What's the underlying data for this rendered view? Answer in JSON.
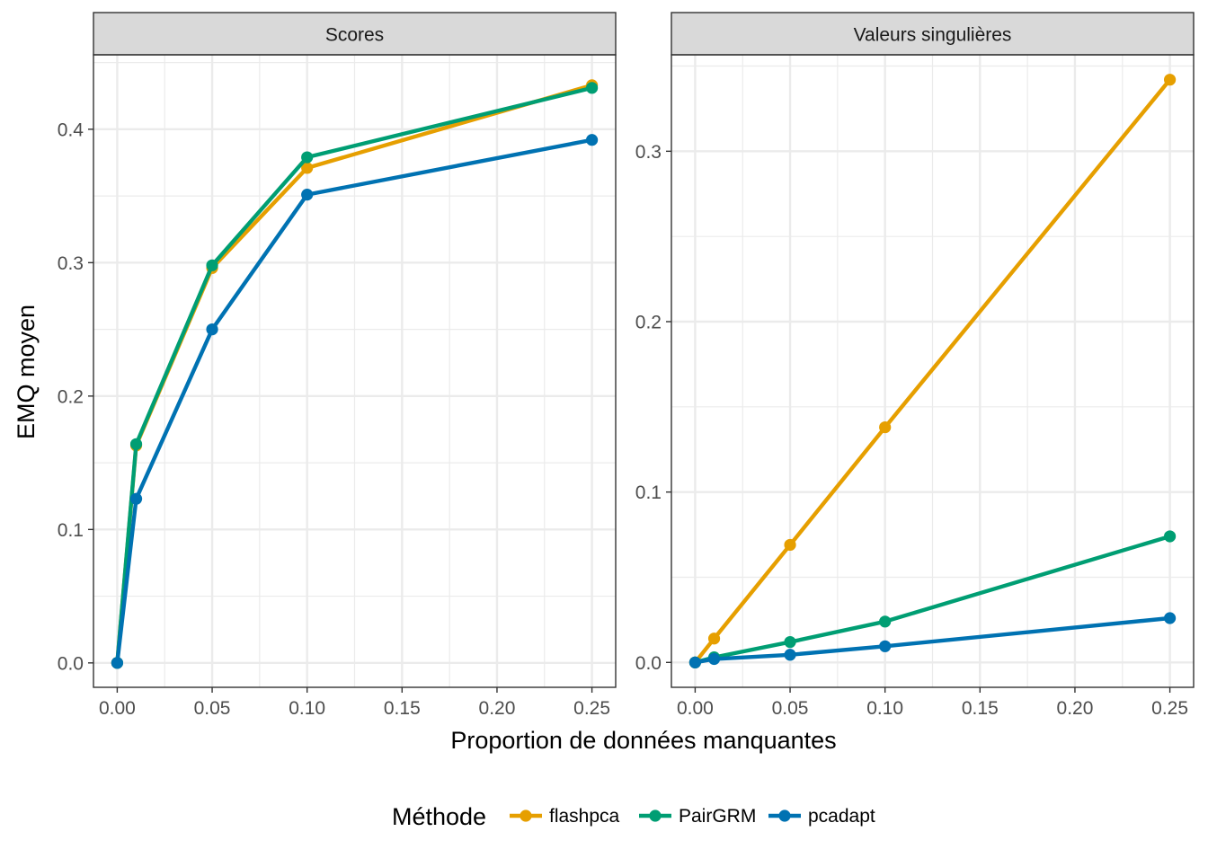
{
  "chart_data": {
    "type": "line",
    "xlabel": "Proportion de données manquantes",
    "ylabel": "EMQ moyen",
    "legend": {
      "title": "Méthode",
      "position": "bottom",
      "entries": [
        "flashpca",
        "PairGRM",
        "pcadapt"
      ]
    },
    "colors": {
      "flashpca": "#E69F00",
      "PairGRM": "#009E73",
      "pcadapt": "#0072B2",
      "strip_fill": "#D9D9D9",
      "grid": "#EBEBEB",
      "border": "#333333",
      "text": "#4D4D4D"
    },
    "grid": true,
    "x": [
      0.0,
      0.01,
      0.05,
      0.1,
      0.25
    ],
    "x_ticks": [
      0.0,
      0.05,
      0.1,
      0.15,
      0.2,
      0.25
    ],
    "x_tick_labels": [
      "0.00",
      "0.05",
      "0.10",
      "0.15",
      "0.20",
      "0.25"
    ],
    "xlim": [
      -0.0125,
      0.2625
    ],
    "panels": [
      {
        "title": "Scores",
        "ylim": [
          -0.0183,
          0.4558
        ],
        "y_ticks": [
          0,
          0.1,
          0.2,
          0.3,
          0.4
        ],
        "y_tick_labels": [
          "0.0",
          "0.1",
          "0.2",
          "0.3",
          "0.4"
        ],
        "series": [
          {
            "name": "flashpca",
            "values": [
              0.0,
              0.163,
              0.296,
              0.371,
              0.433
            ]
          },
          {
            "name": "PairGRM",
            "values": [
              0.0,
              0.164,
              0.298,
              0.379,
              0.431
            ]
          },
          {
            "name": "pcadapt",
            "values": [
              0.0,
              0.123,
              0.25,
              0.351,
              0.392
            ]
          }
        ]
      },
      {
        "title": "Valeurs singulières",
        "ylim": [
          -0.0146,
          0.3566
        ],
        "y_ticks": [
          0,
          0.1,
          0.2,
          0.3
        ],
        "y_tick_labels": [
          "0.0",
          "0.1",
          "0.2",
          "0.3"
        ],
        "series": [
          {
            "name": "flashpca",
            "values": [
              0.0,
              0.014,
              0.069,
              0.138,
              0.342
            ]
          },
          {
            "name": "PairGRM",
            "values": [
              0.0,
              0.003,
              0.012,
              0.024,
              0.074
            ]
          },
          {
            "name": "pcadapt",
            "values": [
              0.0,
              0.002,
              0.0045,
              0.0095,
              0.026
            ]
          }
        ]
      }
    ]
  }
}
